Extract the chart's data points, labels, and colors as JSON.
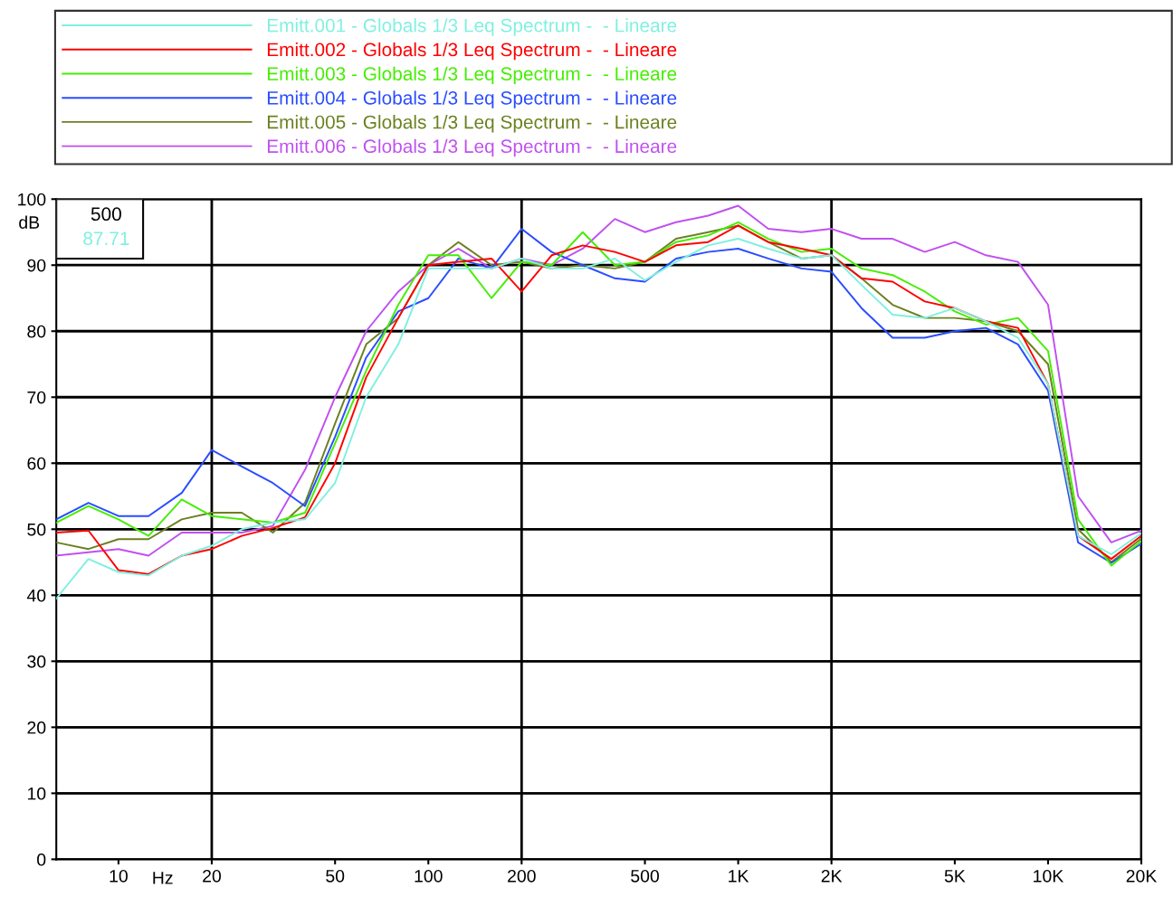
{
  "chart_data": {
    "type": "line",
    "xlabel": "Hz",
    "ylabel": "dB",
    "log": "x",
    "grid": "y",
    "legend": "top",
    "marker": "none",
    "line_style": "solid",
    "x": [
      6.3,
      8,
      10,
      12.5,
      16,
      20,
      25,
      31.5,
      40,
      50,
      63,
      80,
      100,
      125,
      160,
      200,
      250,
      315,
      400,
      500,
      630,
      800,
      1000,
      1250,
      1600,
      2000,
      2500,
      3150,
      4000,
      5000,
      6300,
      8000,
      10000,
      12500,
      16000,
      20000
    ],
    "xlim": [
      6.3,
      20000
    ],
    "xticks": [
      10,
      20,
      50,
      100,
      200,
      500,
      {
        "value": 1000,
        "label": "1K"
      },
      {
        "value": 2000,
        "label": "2K"
      },
      {
        "value": 5000,
        "label": "5K"
      },
      {
        "value": 10000,
        "label": "10K"
      },
      {
        "value": 20000,
        "label": "20K"
      }
    ],
    "ylim": [
      0,
      100
    ],
    "yticks": [
      0,
      10,
      20,
      30,
      40,
      50,
      60,
      70,
      80,
      90,
      100
    ],
    "ref_lines": [
      {
        "axis": "x",
        "value": 20,
        "color": "#000000"
      },
      {
        "axis": "x",
        "value": 200,
        "color": "#000000"
      },
      {
        "axis": "x",
        "value": 2000,
        "color": "#000000"
      },
      {
        "axis": "x",
        "value": 20000,
        "color": "#000000"
      }
    ],
    "annotations": [
      "500",
      "87.71"
    ],
    "series": [
      {
        "name": "Emitt.001 - Globals 1/3 Leq Spectrum -  - Lineare",
        "color": "#80f0e0",
        "values": [
          39.5,
          45.5,
          43.5,
          43,
          46,
          47.5,
          50,
          51,
          51.5,
          57,
          70,
          78,
          89.5,
          89.5,
          89.5,
          91,
          89.5,
          89.5,
          91,
          87.71,
          90.5,
          93,
          94,
          92.5,
          91,
          91.5,
          87,
          82.5,
          82,
          83.5,
          81.5,
          79,
          72,
          49,
          46.2,
          49.4
        ]
      },
      {
        "name": "Emitt.002 - Globals 1/3 Leq Spectrum -  - Lineare",
        "color": "#ff0000",
        "values": [
          49.5,
          49.8,
          43.8,
          43.2,
          46,
          47,
          49,
          50.2,
          51.8,
          60,
          73,
          82,
          90,
          90.5,
          91,
          86,
          91.5,
          93,
          92,
          90.5,
          93,
          93.5,
          96,
          93.5,
          92.5,
          91.5,
          88,
          87.5,
          84.5,
          83.5,
          81.5,
          80.5,
          72,
          49,
          45.5,
          49
        ]
      },
      {
        "name": "Emitt.003 - Globals 1/3 Leq Spectrum -  - Lineare",
        "color": "#44ee00",
        "values": [
          51,
          53.5,
          51.5,
          49,
          54.5,
          52,
          51.5,
          51,
          52.5,
          63,
          74,
          84,
          91.5,
          91.5,
          85,
          90.5,
          90,
          95,
          90,
          90.5,
          93.5,
          94.5,
          96.5,
          94,
          92,
          92.5,
          89.5,
          88.5,
          86,
          83,
          81,
          82,
          77,
          51.5,
          44.5,
          48.2
        ]
      },
      {
        "name": "Emitt.004 - Globals 1/3 Leq Spectrum -  - Lineare",
        "color": "#2a4dff",
        "values": [
          51.5,
          54,
          52,
          52,
          55.5,
          62,
          59.5,
          57,
          53.5,
          64,
          76,
          83,
          85,
          91,
          89.5,
          95.5,
          92,
          90,
          88,
          87.5,
          91,
          92,
          92.5,
          91,
          89.5,
          89,
          83.5,
          79,
          79,
          80,
          80.5,
          78,
          71,
          48,
          44.9,
          47.8
        ]
      },
      {
        "name": "Emitt.005 - Globals 1/3 Leq Spectrum -  - Lineare",
        "color": "#6b8020",
        "values": [
          48,
          47,
          48.5,
          48.5,
          51.5,
          52.5,
          52.5,
          49.5,
          54,
          66,
          78,
          82,
          90,
          93.5,
          90,
          90.5,
          89.5,
          90,
          89.5,
          90.5,
          94,
          95,
          96,
          93.5,
          91,
          91.5,
          88,
          84,
          82,
          82,
          81.5,
          80,
          75,
          50,
          45,
          48.6
        ]
      },
      {
        "name": "Emitt.006 - Globals 1/3 Leq Spectrum -  - Lineare",
        "color": "#c050f0",
        "values": [
          46,
          46.5,
          47,
          46,
          49.5,
          49.5,
          49.5,
          50.5,
          59,
          70,
          80,
          86,
          90,
          92.5,
          89.5,
          91,
          90,
          92.5,
          97,
          95,
          96.5,
          97.5,
          99,
          95.5,
          95,
          95.5,
          94,
          94,
          92,
          93.5,
          91.5,
          90.5,
          84,
          55,
          48,
          49.8
        ]
      }
    ]
  }
}
